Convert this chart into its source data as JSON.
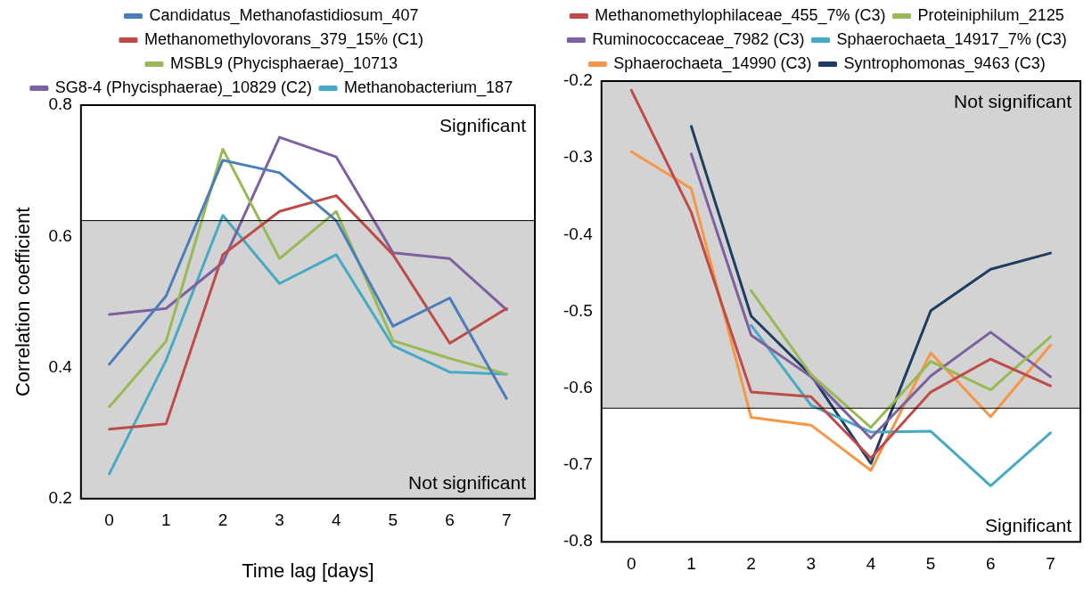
{
  "chart_data": [
    {
      "type": "line",
      "xlabel": "Time lag [days]",
      "ylabel": "Correlation coefficient",
      "categories": [
        "0",
        "1",
        "2",
        "3",
        "4",
        "5",
        "6",
        "7"
      ],
      "series": [
        {
          "name": "Candidatus_Methanofastidiosum_407",
          "color": "#4a7ebb",
          "values": [
            0.405,
            0.509,
            0.716,
            0.697,
            0.624,
            0.463,
            0.506,
            0.353
          ]
        },
        {
          "name": "Methanomethylovorans_379_15% (C1)",
          "color": "#be4b48",
          "values": [
            0.306,
            0.314,
            0.572,
            0.638,
            0.662,
            0.572,
            0.437,
            0.49
          ]
        },
        {
          "name": "MSBL9 (Phycisphaerae)_10713",
          "color": "#98b954",
          "values": [
            0.34,
            0.44,
            0.733,
            0.566,
            0.638,
            0.441,
            0.414,
            0.39
          ]
        },
        {
          "name": "SG8-4 (Phycisphaerae)_10829 (C2)",
          "color": "#7d60a0",
          "values": [
            0.481,
            0.49,
            0.56,
            0.751,
            0.721,
            0.575,
            0.566,
            0.488
          ]
        },
        {
          "name": "Methanobacterium_187",
          "color": "#46aac5",
          "values": [
            0.238,
            0.411,
            0.632,
            0.528,
            0.572,
            0.433,
            0.393,
            0.39
          ]
        }
      ],
      "ylim": [
        0.2,
        0.8
      ],
      "yticks": [
        0.2,
        0.4,
        0.6,
        0.8
      ],
      "grid": false,
      "legend": "top",
      "marker": "none",
      "line_style": "solid",
      "bands": [
        {
          "axis": "y",
          "from": 0.2,
          "to": 0.624,
          "label": "Not significant",
          "color": "#d3d3d3"
        }
      ],
      "ref_lines": [
        {
          "axis": "y",
          "value": 0.624,
          "color": "#000000"
        }
      ],
      "annotations": [
        "Significant"
      ]
    },
    {
      "type": "line",
      "categories": [
        "0",
        "1",
        "2",
        "3",
        "4",
        "5",
        "6",
        "7"
      ],
      "series": [
        {
          "name": "Methanomethylophilaceae_455_7% (C3)",
          "color": "#be4b48",
          "values": [
            -0.212,
            -0.371,
            -0.605,
            -0.611,
            -0.691,
            -0.605,
            -0.562,
            -0.597
          ]
        },
        {
          "name": "Proteiniphilum_2125",
          "color": "#98b954",
          "values": [
            null,
            null,
            -0.473,
            -0.582,
            -0.651,
            -0.565,
            -0.602,
            -0.533
          ]
        },
        {
          "name": "Ruminococcaceae_7982 (C3)",
          "color": "#7d60a0",
          "values": [
            null,
            -0.295,
            -0.531,
            -0.585,
            -0.665,
            -0.584,
            -0.527,
            -0.585
          ]
        },
        {
          "name": "Sphaerochaeta_14917_7% (C3)",
          "color": "#46aac5",
          "values": [
            null,
            null,
            -0.518,
            -0.622,
            -0.657,
            -0.656,
            -0.727,
            -0.658
          ]
        },
        {
          "name": "Sphaerochaeta_14990 (C3)",
          "color": "#f79646",
          "values": [
            -0.292,
            -0.34,
            -0.638,
            -0.648,
            -0.707,
            -0.554,
            -0.637,
            -0.544
          ]
        },
        {
          "name": "Syntrophomonas_9463 (C3)",
          "color": "#1f3d63",
          "values": [
            null,
            -0.259,
            -0.506,
            -0.583,
            -0.698,
            -0.499,
            -0.445,
            -0.424
          ]
        }
      ],
      "ylim": [
        -0.8,
        -0.2
      ],
      "yticks": [
        -0.8,
        -0.7,
        -0.6,
        -0.5,
        -0.4,
        -0.3,
        -0.2
      ],
      "grid": false,
      "legend": "top",
      "marker": "none",
      "line_style": "solid",
      "bands": [
        {
          "axis": "y",
          "from": -0.626,
          "to": -0.2,
          "label": "Not significant",
          "color": "#d3d3d3"
        }
      ],
      "ref_lines": [
        {
          "axis": "y",
          "value": -0.626,
          "color": "#000000"
        }
      ],
      "annotations": [
        "Significant"
      ]
    }
  ]
}
